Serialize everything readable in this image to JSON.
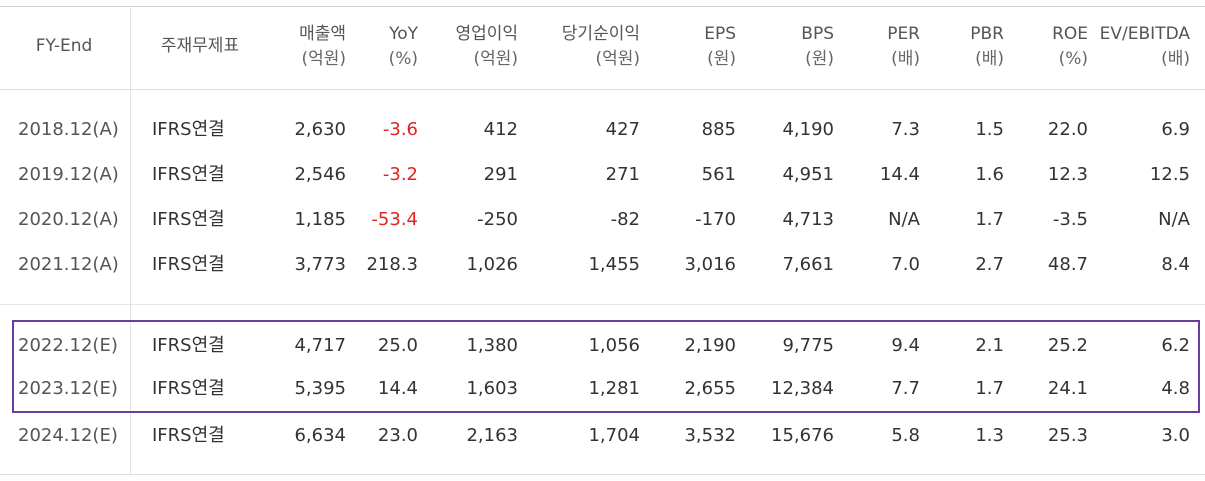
{
  "columns": [
    {
      "key": "fy",
      "label": "FY-End",
      "unit": ""
    },
    {
      "key": "type",
      "label": "주재무제표",
      "unit": ""
    },
    {
      "key": "sales",
      "label": "매출액",
      "unit": "(억원)"
    },
    {
      "key": "yoy",
      "label": "YoY",
      "unit": "(%)"
    },
    {
      "key": "op",
      "label": "영업이익",
      "unit": "(억원)"
    },
    {
      "key": "net",
      "label": "당기순이익",
      "unit": "(억원)"
    },
    {
      "key": "eps",
      "label": "EPS",
      "unit": "(원)"
    },
    {
      "key": "bps",
      "label": "BPS",
      "unit": "(원)"
    },
    {
      "key": "per",
      "label": "PER",
      "unit": "(배)"
    },
    {
      "key": "pbr",
      "label": "PBR",
      "unit": "(배)"
    },
    {
      "key": "roe",
      "label": "ROE",
      "unit": "(%)"
    },
    {
      "key": "ev",
      "label": "EV/EBITDA",
      "unit": "(배)"
    }
  ],
  "rows": [
    {
      "fy": "2018.12(A)",
      "type": "IFRS연결",
      "sales": "2,630",
      "yoy": "-3.6",
      "op": "412",
      "net": "427",
      "eps": "885",
      "bps": "4,190",
      "per": "7.3",
      "pbr": "1.5",
      "roe": "22.0",
      "ev": "6.9"
    },
    {
      "fy": "2019.12(A)",
      "type": "IFRS연결",
      "sales": "2,546",
      "yoy": "-3.2",
      "op": "291",
      "net": "271",
      "eps": "561",
      "bps": "4,951",
      "per": "14.4",
      "pbr": "1.6",
      "roe": "12.3",
      "ev": "12.5"
    },
    {
      "fy": "2020.12(A)",
      "type": "IFRS연결",
      "sales": "1,185",
      "yoy": "-53.4",
      "op": "-250",
      "net": "-82",
      "eps": "-170",
      "bps": "4,713",
      "per": "N/A",
      "pbr": "1.7",
      "roe": "-3.5",
      "ev": "N/A"
    },
    {
      "fy": "2021.12(A)",
      "type": "IFRS연결",
      "sales": "3,773",
      "yoy": "218.3",
      "op": "1,026",
      "net": "1,455",
      "eps": "3,016",
      "bps": "7,661",
      "per": "7.0",
      "pbr": "2.7",
      "roe": "48.7",
      "ev": "8.4"
    },
    {
      "fy": "2022.12(E)",
      "type": "IFRS연결",
      "sales": "4,717",
      "yoy": "25.0",
      "op": "1,380",
      "net": "1,056",
      "eps": "2,190",
      "bps": "9,775",
      "per": "9.4",
      "pbr": "2.1",
      "roe": "25.2",
      "ev": "6.2"
    },
    {
      "fy": "2023.12(E)",
      "type": "IFRS연결",
      "sales": "5,395",
      "yoy": "14.4",
      "op": "1,603",
      "net": "1,281",
      "eps": "2,655",
      "bps": "12,384",
      "per": "7.7",
      "pbr": "1.7",
      "roe": "24.1",
      "ev": "4.8"
    },
    {
      "fy": "2024.12(E)",
      "type": "IFRS연결",
      "sales": "6,634",
      "yoy": "23.0",
      "op": "2,163",
      "net": "1,704",
      "eps": "3,532",
      "bps": "15,676",
      "per": "5.8",
      "pbr": "1.3",
      "roe": "25.3",
      "ev": "3.0"
    }
  ],
  "colors": {
    "negative_yoy": "#e0251f",
    "highlight_border": "#6a3ea1"
  }
}
